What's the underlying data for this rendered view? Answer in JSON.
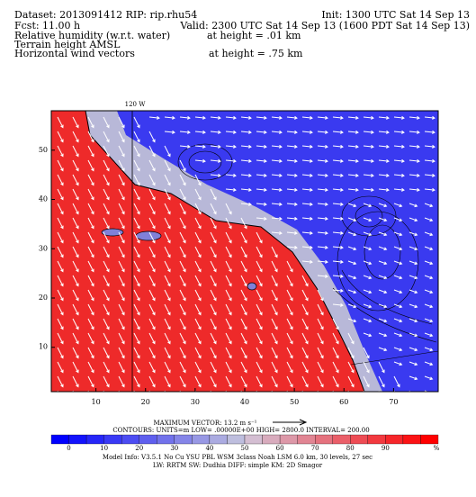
{
  "header": {
    "dataset": "Dataset: 2013091412   RIP: rip.rhu54",
    "init": "Init: 1300 UTC Sat 14 Sep 13",
    "fcst": "Fcst:   11.00 h",
    "valid": "Valid: 2300 UTC Sat 14 Sep 13 (1600 PDT Sat 14 Sep 13)",
    "field1": "Relative humidity (w.r.t. water)",
    "field1_level": "at height =   .01 km",
    "field2": "Terrain height AMSL",
    "field3": "Horizontal wind vectors",
    "field3_level": "at height =   .75 km"
  },
  "map": {
    "meridian_label": "120 W",
    "xlim": [
      1,
      79
    ],
    "ylim": [
      1,
      58
    ],
    "xticks": [
      10,
      20,
      30,
      40,
      50,
      60,
      70
    ],
    "yticks": [
      10,
      20,
      30,
      40,
      50
    ]
  },
  "footer": {
    "max_vector": "MAXIMUM VECTOR:  13.2 m s⁻¹",
    "contours": "CONTOURS:  UNITS=m  LOW= .00000E+00  HIGH= 2800.0    INTERVAL= 200.00",
    "colorbar_levels": [
      0,
      10,
      20,
      30,
      40,
      50,
      60,
      70,
      80,
      90
    ],
    "colorbar_unit": "%",
    "model_info": "Model Info: V3.5.1    No Cu    YSU PBL   WSM 3class   Noah LSM  6.0 km,  30 levels,  27 sec",
    "model_info2": "LW: RRTM  SW: Dudhia  DIFF: simple  KM: 2D Smagor"
  }
}
